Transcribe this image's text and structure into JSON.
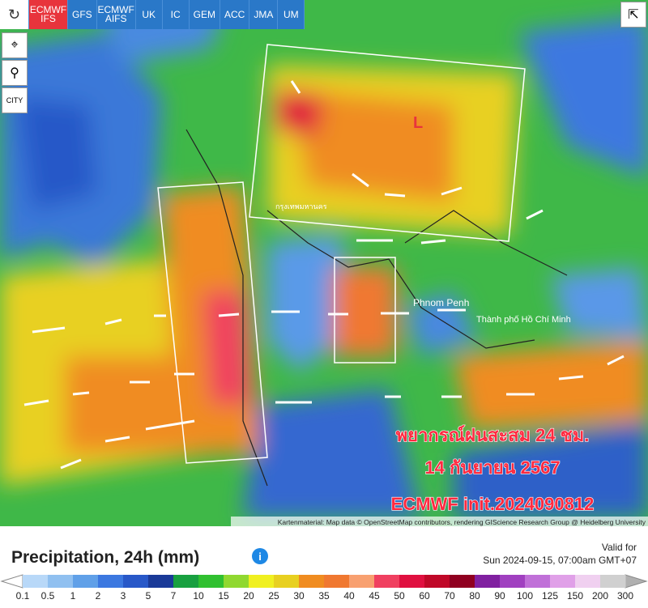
{
  "toolbar": {
    "models": [
      "ECMWF IFS",
      "GFS",
      "ECMWF AIFS",
      "UK",
      "IC",
      "GEM",
      "ACC",
      "JMA",
      "UM"
    ],
    "active": 0,
    "city": "CITY"
  },
  "map": {
    "labels": [
      "L",
      "กรุงเทพมหานคร",
      "Phnom Penh",
      "Thành phố Hồ Chí Minh"
    ],
    "overlay": [
      "พยากรณ์ฝนสะสม 24 ชม.",
      "14 กันยายน 2567",
      "ECMWF init.2024090812"
    ],
    "attribution": "Kartenmaterial: Map data © OpenStreetMap contributors, rendering GIScience Research Group @ Heidelberg University"
  },
  "legend": {
    "title": "Precipitation, 24h (mm)",
    "valid_label": "Valid for",
    "valid_time": "Sun 2024-09-15, 07:00am GMT+07",
    "ticks": [
      0.1,
      0.5,
      1,
      2,
      3,
      5,
      7,
      10,
      15,
      20,
      25,
      30,
      35,
      40,
      45,
      50,
      60,
      70,
      80,
      90,
      100,
      125,
      150,
      200,
      300
    ],
    "colors": [
      "#b8d8f8",
      "#90c0f0",
      "#60a0e8",
      "#3c78e0",
      "#2858c8",
      "#1a3a98",
      "#18a040",
      "#30c030",
      "#90d830",
      "#f0f020",
      "#e8d020",
      "#f08c20",
      "#f07830",
      "#f8a070",
      "#f04060",
      "#e01040",
      "#c00828",
      "#900020",
      "#8020a0",
      "#a040c0",
      "#c070d8",
      "#e0a0e8",
      "#f0d0f0",
      "#d0d0d0"
    ],
    "low_color": "#ffffff",
    "high_color": "#b0b0b0"
  }
}
